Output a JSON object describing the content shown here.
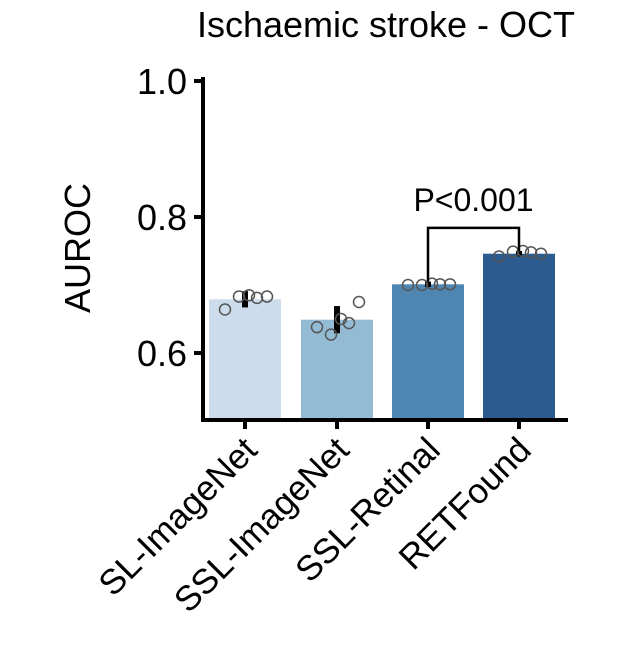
{
  "chart_data": {
    "type": "bar",
    "title": "Ischaemic stroke - OCT",
    "ylabel": "AUROC",
    "xlabel": "",
    "ylim": [
      0.5,
      1.0
    ],
    "yticks": [
      0.6,
      0.8,
      1.0
    ],
    "ytick_labels": [
      "0.6",
      "0.8",
      "1.0"
    ],
    "grid": false,
    "categories": [
      "SL-ImageNet",
      "SSL-ImageNet",
      "SSL-Retinal",
      "RETFound"
    ],
    "values": [
      0.679,
      0.649,
      0.701,
      0.746
    ],
    "error": [
      0.012,
      0.02,
      0.004,
      0.004
    ],
    "colors": [
      "#cddcec",
      "#93bbd3",
      "#4f86b1",
      "#2c5b8f"
    ],
    "points": [
      [
        0.664,
        0.683,
        0.685,
        0.681,
        0.683
      ],
      [
        0.638,
        0.627,
        0.65,
        0.644,
        0.675
      ],
      [
        0.7,
        0.7,
        0.702,
        0.701,
        0.701
      ],
      [
        0.742,
        0.749,
        0.75,
        0.748,
        0.746
      ]
    ],
    "annotations": [
      {
        "text": "P<0.001",
        "from": "SSL-Retinal",
        "to": "RETFound",
        "bracket_y": 0.784,
        "bracket_drop_to": [
          0.705,
          0.75
        ]
      }
    ]
  }
}
